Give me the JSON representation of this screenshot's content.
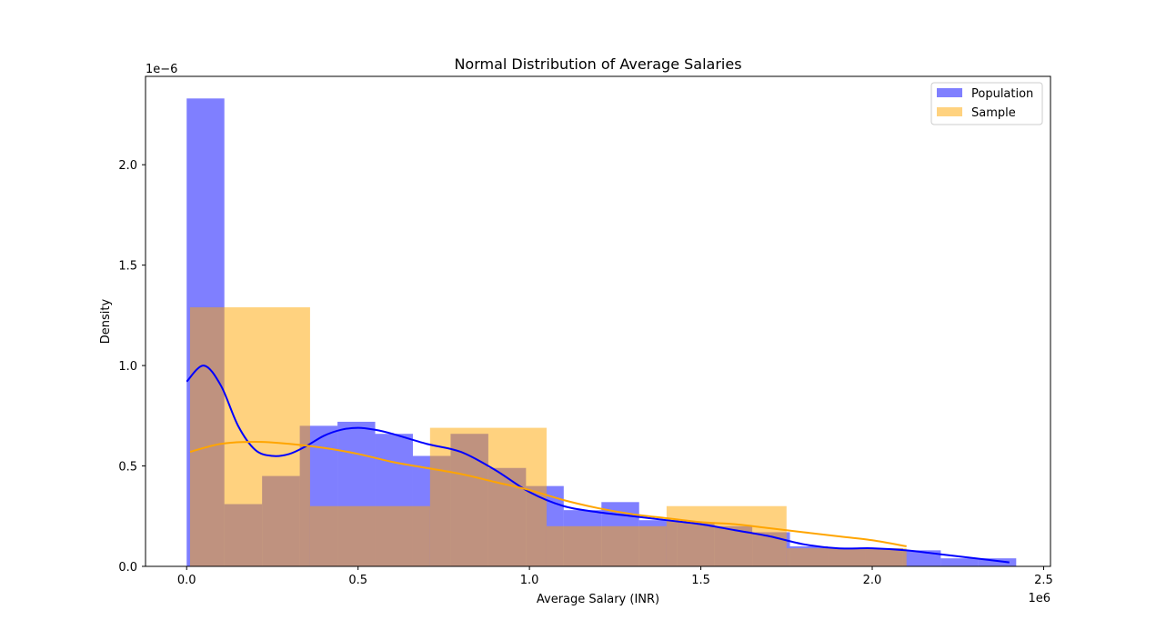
{
  "chart_data": {
    "type": "bar",
    "subtype": "overlaid-histogram-with-kde",
    "title": "Normal Distribution of Average Salaries",
    "xlabel": "Average Salary (INR)",
    "ylabel": "Density",
    "x_offset_label": "1e6",
    "y_offset_label": "1e−6",
    "x_scale": 1000000,
    "y_scale": 1e-06,
    "xlim": [
      -0.12,
      2.52
    ],
    "ylim": [
      0,
      2.44
    ],
    "x_ticks": [
      0.0,
      0.5,
      1.0,
      1.5,
      2.0,
      2.5
    ],
    "x_tick_labels": [
      "0.0",
      "0.5",
      "1.0",
      "1.5",
      "2.0",
      "2.5"
    ],
    "y_ticks": [
      0.0,
      0.5,
      1.0,
      1.5,
      2.0
    ],
    "y_tick_labels": [
      "0.0",
      "0.5",
      "1.0",
      "1.5",
      "2.0"
    ],
    "grid": false,
    "legend_position": "top-right",
    "colors": {
      "population": "#0000ff",
      "sample": "#ffa500",
      "population_kde": "#0000ff",
      "sample_kde": "#ffa500"
    },
    "bar_opacity": 0.5,
    "series": [
      {
        "name": "Population",
        "color": "#0000ff",
        "bins": [
          {
            "x0": 0.0,
            "x1": 0.11,
            "density": 2.33
          },
          {
            "x0": 0.11,
            "x1": 0.22,
            "density": 0.31
          },
          {
            "x0": 0.22,
            "x1": 0.33,
            "density": 0.45
          },
          {
            "x0": 0.33,
            "x1": 0.44,
            "density": 0.7
          },
          {
            "x0": 0.44,
            "x1": 0.55,
            "density": 0.72
          },
          {
            "x0": 0.55,
            "x1": 0.66,
            "density": 0.66
          },
          {
            "x0": 0.66,
            "x1": 0.77,
            "density": 0.55
          },
          {
            "x0": 0.77,
            "x1": 0.88,
            "density": 0.66
          },
          {
            "x0": 0.88,
            "x1": 0.99,
            "density": 0.49
          },
          {
            "x0": 0.99,
            "x1": 1.1,
            "density": 0.4
          },
          {
            "x0": 1.1,
            "x1": 1.21,
            "density": 0.28
          },
          {
            "x0": 1.21,
            "x1": 1.32,
            "density": 0.32
          },
          {
            "x0": 1.32,
            "x1": 1.43,
            "density": 0.23
          },
          {
            "x0": 1.43,
            "x1": 1.54,
            "density": 0.22
          },
          {
            "x0": 1.54,
            "x1": 1.65,
            "density": 0.2
          },
          {
            "x0": 1.65,
            "x1": 1.76,
            "density": 0.17
          },
          {
            "x0": 1.76,
            "x1": 1.87,
            "density": 0.1
          },
          {
            "x0": 1.87,
            "x1": 1.98,
            "density": 0.09
          },
          {
            "x0": 1.98,
            "x1": 2.09,
            "density": 0.09
          },
          {
            "x0": 2.09,
            "x1": 2.2,
            "density": 0.08
          },
          {
            "x0": 2.2,
            "x1": 2.31,
            "density": 0.04
          },
          {
            "x0": 2.31,
            "x1": 2.42,
            "density": 0.04
          }
        ],
        "kde": {
          "x": [
            0.0,
            0.05,
            0.1,
            0.15,
            0.2,
            0.25,
            0.3,
            0.35,
            0.4,
            0.45,
            0.5,
            0.55,
            0.6,
            0.7,
            0.8,
            0.9,
            1.0,
            1.1,
            1.2,
            1.3,
            1.4,
            1.5,
            1.6,
            1.7,
            1.8,
            1.9,
            2.0,
            2.1,
            2.2,
            2.3,
            2.4
          ],
          "y": [
            0.92,
            1.0,
            0.9,
            0.7,
            0.58,
            0.55,
            0.56,
            0.6,
            0.65,
            0.68,
            0.69,
            0.68,
            0.66,
            0.61,
            0.57,
            0.48,
            0.37,
            0.3,
            0.27,
            0.25,
            0.23,
            0.21,
            0.18,
            0.15,
            0.11,
            0.09,
            0.09,
            0.08,
            0.06,
            0.04,
            0.02
          ]
        }
      },
      {
        "name": "Sample",
        "color": "#ffa500",
        "bins": [
          {
            "x0": 0.01,
            "x1": 0.36,
            "density": 1.29
          },
          {
            "x0": 0.36,
            "x1": 0.71,
            "density": 0.3
          },
          {
            "x0": 0.71,
            "x1": 1.05,
            "density": 0.69
          },
          {
            "x0": 1.05,
            "x1": 1.4,
            "density": 0.2
          },
          {
            "x0": 1.4,
            "x1": 1.75,
            "density": 0.3
          },
          {
            "x0": 1.75,
            "x1": 2.1,
            "density": 0.09
          }
        ],
        "kde": {
          "x": [
            0.01,
            0.1,
            0.2,
            0.3,
            0.4,
            0.5,
            0.6,
            0.7,
            0.8,
            0.9,
            1.0,
            1.1,
            1.2,
            1.3,
            1.4,
            1.5,
            1.6,
            1.7,
            1.8,
            1.9,
            2.0,
            2.1
          ],
          "y": [
            0.57,
            0.61,
            0.62,
            0.61,
            0.59,
            0.56,
            0.52,
            0.49,
            0.46,
            0.42,
            0.38,
            0.33,
            0.29,
            0.26,
            0.24,
            0.22,
            0.21,
            0.19,
            0.17,
            0.15,
            0.13,
            0.1
          ]
        }
      }
    ]
  }
}
